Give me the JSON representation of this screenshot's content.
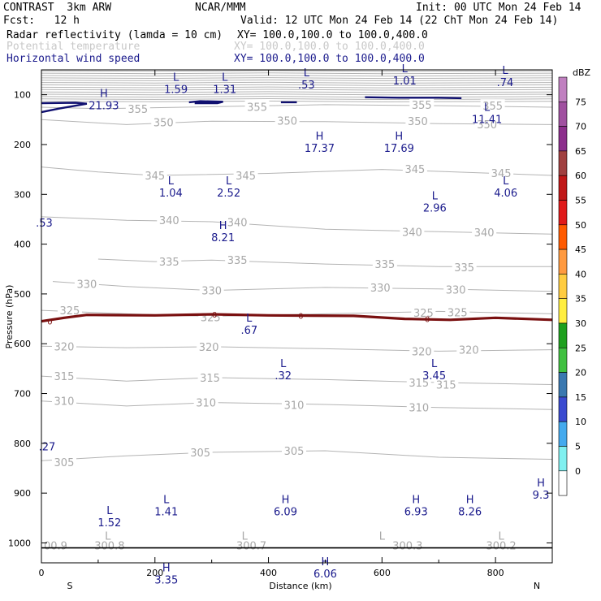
{
  "header": {
    "model": "CONTRAST  3km ARW",
    "center": "NCAR/MMM",
    "init": "Init: 00 UTC Mon 24 Feb 14",
    "fcst": "Fcst:   12 h",
    "valid": "Valid: 12 UTC Mon 24 Feb 14 (22 ChT Mon 24 Feb 14)",
    "fields": [
      {
        "name": "Radar reflectivity (lamda = 10 cm)",
        "xy": "XY= 100.0,100.0 to 100.0,400.0",
        "color": "#000000"
      },
      {
        "name": "Potential temperature",
        "xy": "XY= 100.0,100.0 to 100.0,400.0",
        "color": "#c8c8c8"
      },
      {
        "name": "Horizontal wind speed",
        "xy": "XY= 100.0,100.0 to 100.0,400.0",
        "color": "#1a1a8c"
      }
    ]
  },
  "chart_data": {
    "type": "cross-section",
    "xlabel": "Distance (km)",
    "ylabel": "Pressure (hPa)",
    "xlim": [
      0,
      900
    ],
    "ylim": [
      1040,
      50
    ],
    "xticks": [
      0,
      200,
      400,
      600,
      800
    ],
    "yticks": [
      100,
      200,
      300,
      400,
      500,
      600,
      700,
      800,
      900,
      1000
    ],
    "x_end_labels": {
      "left": "S",
      "right": "N"
    },
    "theta_contours": [
      {
        "label": "355",
        "points": [
          [
            0,
            125
          ],
          [
            100,
            128
          ],
          [
            300,
            124
          ],
          [
            500,
            120
          ],
          [
            700,
            122
          ],
          [
            900,
            125
          ]
        ],
        "labels_at": [
          [
            170,
            128
          ],
          [
            380,
            124
          ],
          [
            670,
            120
          ],
          [
            795,
            122
          ]
        ]
      },
      {
        "label": "350",
        "points": [
          [
            0,
            150
          ],
          [
            150,
            160
          ],
          [
            300,
            153
          ],
          [
            500,
            154
          ],
          [
            700,
            158
          ],
          [
            900,
            160
          ]
        ],
        "labels_at": [
          [
            215,
            155
          ],
          [
            433,
            152
          ],
          [
            663,
            153
          ],
          [
            785,
            159
          ]
        ]
      },
      {
        "label": "345",
        "points": [
          [
            0,
            245
          ],
          [
            100,
            255
          ],
          [
            200,
            262
          ],
          [
            400,
            258
          ],
          [
            600,
            250
          ],
          [
            800,
            258
          ],
          [
            900,
            262
          ]
        ],
        "labels_at": [
          [
            200,
            262
          ],
          [
            360,
            262
          ],
          [
            658,
            249
          ],
          [
            810,
            257
          ]
        ]
      },
      {
        "label": "340",
        "points": [
          [
            0,
            345
          ],
          [
            150,
            352
          ],
          [
            300,
            355
          ],
          [
            500,
            370
          ],
          [
            700,
            375
          ],
          [
            900,
            380
          ]
        ],
        "labels_at": [
          [
            225,
            352
          ],
          [
            345,
            356
          ],
          [
            653,
            375
          ],
          [
            780,
            376
          ]
        ]
      },
      {
        "label": "335",
        "points": [
          [
            100,
            430
          ],
          [
            200,
            435
          ],
          [
            300,
            432
          ],
          [
            500,
            440
          ],
          [
            700,
            445
          ],
          [
            900,
            445
          ]
        ],
        "labels_at": [
          [
            225,
            435
          ],
          [
            345,
            432
          ],
          [
            605,
            440
          ],
          [
            745,
            446
          ]
        ]
      },
      {
        "label": "330",
        "points": [
          [
            20,
            475
          ],
          [
            150,
            485
          ],
          [
            300,
            493
          ],
          [
            500,
            487
          ],
          [
            700,
            490
          ],
          [
            900,
            495
          ]
        ],
        "labels_at": [
          [
            80,
            480
          ],
          [
            300,
            493
          ],
          [
            597,
            487
          ],
          [
            730,
            491
          ]
        ]
      },
      {
        "label": "325",
        "points": [
          [
            0,
            533
          ],
          [
            150,
            540
          ],
          [
            300,
            545
          ],
          [
            500,
            540
          ],
          [
            700,
            535
          ],
          [
            900,
            540
          ]
        ],
        "labels_at": [
          [
            50,
            533
          ],
          [
            298,
            547
          ],
          [
            673,
            538
          ],
          [
            733,
            537
          ]
        ]
      },
      {
        "label": "320",
        "points": [
          [
            0,
            605
          ],
          [
            150,
            608
          ],
          [
            300,
            606
          ],
          [
            500,
            610
          ],
          [
            700,
            615
          ],
          [
            900,
            612
          ]
        ],
        "labels_at": [
          [
            40,
            605
          ],
          [
            295,
            606
          ],
          [
            670,
            615
          ],
          [
            753,
            612
          ]
        ]
      },
      {
        "label": "315",
        "points": [
          [
            0,
            665
          ],
          [
            150,
            675
          ],
          [
            300,
            668
          ],
          [
            500,
            672
          ],
          [
            700,
            678
          ],
          [
            900,
            682
          ]
        ],
        "labels_at": [
          [
            40,
            665
          ],
          [
            297,
            668
          ],
          [
            665,
            678
          ],
          [
            713,
            682
          ]
        ]
      },
      {
        "label": "310",
        "points": [
          [
            0,
            715
          ],
          [
            150,
            725
          ],
          [
            300,
            718
          ],
          [
            500,
            722
          ],
          [
            700,
            728
          ],
          [
            900,
            732
          ]
        ],
        "labels_at": [
          [
            40,
            715
          ],
          [
            290,
            718
          ],
          [
            445,
            723
          ],
          [
            665,
            728
          ]
        ]
      },
      {
        "label": "305",
        "points": [
          [
            0,
            835
          ],
          [
            150,
            825
          ],
          [
            300,
            818
          ],
          [
            500,
            815
          ],
          [
            700,
            828
          ],
          [
            900,
            832
          ]
        ],
        "labels_at": [
          [
            40,
            838
          ],
          [
            280,
            818
          ],
          [
            445,
            815
          ]
        ]
      }
    ],
    "theta_surface_labels": [
      {
        "text": "00.9",
        "x": 25,
        "p": 1005
      },
      {
        "text": "300.8",
        "x": 120,
        "p": 1005
      },
      {
        "text": "300.7",
        "x": 370,
        "p": 1005
      },
      {
        "text": "300.3",
        "x": 645,
        "p": 1005
      },
      {
        "text": "300.2",
        "x": 810,
        "p": 1005
      }
    ],
    "theta_surface_L": [
      {
        "text": "L",
        "x": 117,
        "p": 985
      },
      {
        "text": "L",
        "x": 358,
        "p": 985
      },
      {
        "text": "L",
        "x": 600,
        "p": 985
      },
      {
        "text": "L",
        "x": 810,
        "p": 985
      }
    ],
    "reflectivity_zero_contour": {
      "label": "0",
      "points": [
        [
          0,
          555
        ],
        [
          40,
          548
        ],
        [
          80,
          542
        ],
        [
          200,
          543
        ],
        [
          300,
          541
        ],
        [
          400,
          543
        ],
        [
          550,
          544
        ],
        [
          640,
          550
        ],
        [
          720,
          552
        ],
        [
          800,
          548
        ],
        [
          900,
          552
        ]
      ],
      "labels_at": [
        [
          15,
          555
        ],
        [
          305,
          541
        ],
        [
          457,
          543
        ],
        [
          680,
          550
        ]
      ]
    },
    "wind_speed_zero_blobs": [
      {
        "points": [
          [
            0,
            117
          ],
          [
            60,
            116
          ],
          [
            80,
            118
          ],
          [
            30,
            128
          ],
          [
            0,
            135
          ]
        ]
      },
      {
        "points": [
          [
            260,
            115
          ],
          [
            280,
            113
          ],
          [
            320,
            114
          ],
          [
            310,
            117
          ],
          [
            270,
            117
          ]
        ]
      },
      {
        "points": [
          [
            422,
            115
          ],
          [
            450,
            115
          ]
        ]
      },
      {
        "points": [
          [
            570,
            105
          ],
          [
            630,
            106
          ],
          [
            700,
            106
          ],
          [
            740,
            107
          ]
        ]
      }
    ],
    "wind_extrema": [
      {
        "type": "L",
        "value": "1.59",
        "x": 237,
        "p": 72
      },
      {
        "type": "L",
        "value": "1.31",
        "x": 323,
        "p": 72
      },
      {
        "type": "L",
        "value": ".53",
        "x": 467,
        "p": 63
      },
      {
        "type": "L",
        "value": "1.01",
        "x": 640,
        "p": 55
      },
      {
        "type": "L",
        "value": ".74",
        "x": 817,
        "p": 58
      },
      {
        "type": "H",
        "value": "21.93",
        "x": 110,
        "p": 105
      },
      {
        "type": "L",
        "value": "11.41",
        "x": 785,
        "p": 132
      },
      {
        "type": "H",
        "value": "17.37",
        "x": 490,
        "p": 190
      },
      {
        "type": "H",
        "value": "17.69",
        "x": 630,
        "p": 190
      },
      {
        "type": "L",
        "value": "1.04",
        "x": 228,
        "p": 280
      },
      {
        "type": "L",
        "value": "2.52",
        "x": 330,
        "p": 280
      },
      {
        "type": "L",
        "value": "2.96",
        "x": 693,
        "p": 310
      },
      {
        "type": "L",
        "value": "4.06",
        "x": 818,
        "p": 280
      },
      {
        "type": "",
        "value": ".53",
        "x": 5,
        "p": 340
      },
      {
        "type": "H",
        "value": "8.21",
        "x": 320,
        "p": 370
      },
      {
        "type": "L",
        "value": ".67",
        "x": 366,
        "p": 556
      },
      {
        "type": "L",
        "value": ".32",
        "x": 426,
        "p": 647
      },
      {
        "type": "L",
        "value": "3.45",
        "x": 692,
        "p": 647
      },
      {
        "type": "",
        "value": ".27",
        "x": 10,
        "p": 790
      },
      {
        "type": "H",
        "value": "9.3",
        "x": 880,
        "p": 887
      },
      {
        "type": "L",
        "value": "1.52",
        "x": 120,
        "p": 942
      },
      {
        "type": "L",
        "value": "1.41",
        "x": 220,
        "p": 920
      },
      {
        "type": "H",
        "value": "6.09",
        "x": 430,
        "p": 920
      },
      {
        "type": "H",
        "value": "6.93",
        "x": 660,
        "p": 920
      },
      {
        "type": "H",
        "value": "8.26",
        "x": 755,
        "p": 920
      },
      {
        "type": "H",
        "value": "6.06",
        "x": 500,
        "p": 1045
      },
      {
        "type": "H",
        "value": "3.35",
        "x": 220,
        "p": 1057
      }
    ],
    "surface_line_p": 1010,
    "colorbar": {
      "unit": "dBZ",
      "levels": [
        {
          "value": "75",
          "color": "#c080c0"
        },
        {
          "value": "70",
          "color": "#a050a0"
        },
        {
          "value": "65",
          "color": "#8c2e8c"
        },
        {
          "value": "60",
          "color": "#a04040"
        },
        {
          "value": "55",
          "color": "#c01818"
        },
        {
          "value": "50",
          "color": "#e01a1a"
        },
        {
          "value": "45",
          "color": "#ff5a00"
        },
        {
          "value": "40",
          "color": "#ff9a40"
        },
        {
          "value": "35",
          "color": "#ffcc40"
        },
        {
          "value": "30",
          "color": "#ffee40"
        },
        {
          "value": "25",
          "color": "#1ea01e"
        },
        {
          "value": "20",
          "color": "#40c040"
        },
        {
          "value": "15",
          "color": "#3a78b0"
        },
        {
          "value": "10",
          "color": "#3a4ad0"
        },
        {
          "value": "5",
          "color": "#44aaee"
        },
        {
          "value": "0",
          "color": "#80f0f0"
        },
        {
          "value": "",
          "color": "#ffffff"
        }
      ]
    }
  }
}
